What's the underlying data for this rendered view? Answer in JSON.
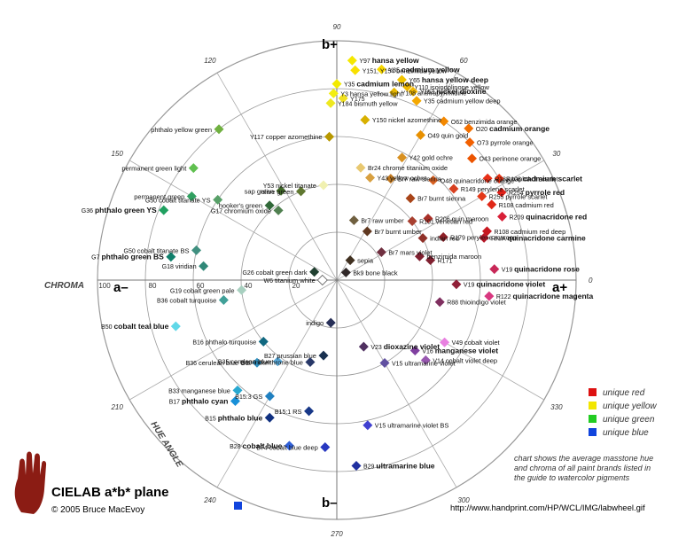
{
  "axis_labels": {
    "b_plus": "b+",
    "b_minus": "b–",
    "a_plus": "a+",
    "a_minus": "a–",
    "chroma": "CHROMA",
    "hue_angle": "HUE ANGLE"
  },
  "hue_ticks": [
    "60",
    "30",
    "0",
    "330",
    "300",
    "270",
    "240",
    "210",
    "150",
    "120",
    "90"
  ],
  "chroma_ticks": [
    "100",
    "80",
    "60",
    "40",
    "20"
  ],
  "legend": [
    {
      "label": "unique red",
      "color": "#dd1111"
    },
    {
      "label": "unique yellow",
      "color": "#f2e600"
    },
    {
      "label": "unique green",
      "color": "#22cc22"
    },
    {
      "label": "unique blue",
      "color": "#1144dd"
    }
  ],
  "note": [
    "chart shows the average masstone hue",
    "and chroma of all paint brands listed in",
    "the guide to watercolor pigments"
  ],
  "title": "CIELAB a*b* plane",
  "copyright": "© 2005 Bruce MacEvoy",
  "url": "http://www.handprint.com/HP/WCL/IMG/labwheel.gif",
  "paints": [
    {
      "code": "Y97",
      "name": "hansa yellow",
      "bold": true,
      "color": "#f5e800",
      "hue": 86,
      "chroma": 92
    },
    {
      "code": "Y151, Y154",
      "name": "benzimida yellow",
      "bold": false,
      "color": "#f8e000",
      "hue": 85,
      "chroma": 88
    },
    {
      "code": "Y35",
      "name": "cadmium lemon",
      "bold": true,
      "color": "#f2ea00",
      "hue": 90,
      "chroma": 82
    },
    {
      "code": "Y3",
      "name": "hansa yellow light",
      "bold": false,
      "color": "#f3ee10",
      "hue": 91,
      "chroma": 78
    },
    {
      "code": "Y184",
      "name": "bismuth yellow",
      "bold": false,
      "color": "#eee820",
      "hue": 92,
      "chroma": 74
    },
    {
      "code": "Y175",
      "name": "",
      "bold": false,
      "color": "#f0e020",
      "hue": 88,
      "chroma": 76
    },
    {
      "code": "Y35",
      "name": "cadmium yellow",
      "bold": true,
      "color": "#f8d800",
      "hue": 78,
      "chroma": 90
    },
    {
      "code": "Y108",
      "name": "anthrapyrimidine",
      "bold": false,
      "color": "#e8b800",
      "hue": 73,
      "chroma": 82
    },
    {
      "code": "Y65",
      "name": "hansa yellow deep",
      "bold": true,
      "color": "#f2c400",
      "hue": 72,
      "chroma": 88
    },
    {
      "code": "Y110",
      "name": "isoindolinone yellow",
      "bold": false,
      "color": "#f0b800",
      "hue": 70,
      "chroma": 86
    },
    {
      "code": "Y153",
      "name": "nickel dioxine",
      "bold": true,
      "color": "#f3b800",
      "hue": 68,
      "chroma": 85
    },
    {
      "code": "Y35",
      "name": "cadmium yellow deep",
      "bold": false,
      "color": "#f4a800",
      "hue": 66,
      "chroma": 82
    },
    {
      "code": "Y150",
      "name": "nickel azomethine",
      "bold": false,
      "color": "#d8b000",
      "hue": 80,
      "chroma": 68
    },
    {
      "code": "Y117",
      "name": "copper azomethine",
      "bold": false,
      "color": "#b89800",
      "hue": 93,
      "chroma": 60
    },
    {
      "code": "O62",
      "name": "benzimida orange",
      "bold": false,
      "color": "#f38800",
      "hue": 56,
      "chroma": 80
    },
    {
      "code": "O20",
      "name": "cadmium orange",
      "bold": true,
      "color": "#f27000",
      "hue": 49,
      "chroma": 84
    },
    {
      "code": "O73",
      "name": "pyrrole orange",
      "bold": false,
      "color": "#f26000",
      "hue": 46,
      "chroma": 80
    },
    {
      "code": "O43",
      "name": "perinone orange",
      "bold": false,
      "color": "#ec5400",
      "hue": 42,
      "chroma": 76
    },
    {
      "code": "Br24",
      "name": "chrome titanium oxide",
      "bold": false,
      "color": "#e8c870",
      "hue": 78,
      "chroma": 48
    },
    {
      "code": "Y43",
      "name": "yellow ochre",
      "bold": false,
      "color": "#d8a040",
      "hue": 72,
      "chroma": 45
    },
    {
      "code": "O49",
      "name": "quin gold",
      "bold": false,
      "color": "#e89000",
      "hue": 60,
      "chroma": 70
    },
    {
      "code": "Y42",
      "name": "gold ochre",
      "bold": false,
      "color": "#d89020",
      "hue": 62,
      "chroma": 58
    },
    {
      "code": "Y53",
      "name": "nickel titanate",
      "bold": false,
      "color": "#f0f0b0",
      "hue": 98,
      "chroma": 40
    },
    {
      "code": "Br7",
      "name": "raw sienna",
      "bold": false,
      "color": "#c07820",
      "hue": 62,
      "chroma": 48
    },
    {
      "code": "R188",
      "name": "naphthol scarlet",
      "bold": false,
      "color": "#e83018",
      "hue": 34,
      "chroma": 76
    },
    {
      "code": "R108",
      "name": "cadmium scarlet",
      "bold": true,
      "color": "#ea3010",
      "hue": 32,
      "chroma": 80
    },
    {
      "code": "R254",
      "name": "pyrrole red",
      "bold": true,
      "color": "#e02018",
      "hue": 28,
      "chroma": 78
    },
    {
      "code": "R255",
      "name": "pyrrole scarlet",
      "bold": false,
      "color": "#e43818",
      "hue": 30,
      "chroma": 70
    },
    {
      "code": "R108",
      "name": "cadmium red",
      "bold": false,
      "color": "#e02818",
      "hue": 26,
      "chroma": 72
    },
    {
      "code": "R209",
      "name": "quinacridone red",
      "bold": true,
      "color": "#d82038",
      "hue": 21,
      "chroma": 74
    },
    {
      "code": "R108",
      "name": "cadmium red deep",
      "bold": false,
      "color": "#c81820",
      "hue": 18,
      "chroma": 66
    },
    {
      "code": "RN/A",
      "name": "quinacridone carmine",
      "bold": true,
      "color": "#b81828",
      "hue": 16,
      "chroma": 64
    },
    {
      "code": "O48",
      "name": "quinacridone orange",
      "bold": false,
      "color": "#d86020",
      "hue": 46,
      "chroma": 58
    },
    {
      "code": "R149",
      "name": "perylene scarlet",
      "bold": false,
      "color": "#d84020",
      "hue": 38,
      "chroma": 62
    },
    {
      "code": "Br7",
      "name": "burnt sienna",
      "bold": false,
      "color": "#a84418",
      "hue": 48,
      "chroma": 46
    },
    {
      "code": "R206",
      "name": "quin maroon",
      "bold": false,
      "color": "#a83028",
      "hue": 34,
      "chroma": 46
    },
    {
      "code": "R101",
      "name": "venetian red",
      "bold": false,
      "color": "#a84030",
      "hue": 38,
      "chroma": 40
    },
    {
      "code": "R179",
      "name": "perylene maroon",
      "bold": false,
      "color": "#902028",
      "hue": 22,
      "chroma": 48
    },
    {
      "code": "",
      "name": "indian red",
      "bold": false,
      "color": "#903028",
      "hue": 26,
      "chroma": 40
    },
    {
      "code": "",
      "name": "benzimida maroon",
      "bold": false,
      "color": "#802030",
      "hue": 16,
      "chroma": 36
    },
    {
      "code": "R171",
      "name": "",
      "bold": false,
      "color": "#802030",
      "hue": 12,
      "chroma": 40
    },
    {
      "code": "V19",
      "name": "quinacridone rose",
      "bold": true,
      "color": "#c82858",
      "hue": 4,
      "chroma": 66
    },
    {
      "code": "V19",
      "name": "quinacridone violet",
      "bold": true,
      "color": "#902038",
      "hue": 358,
      "chroma": 50
    },
    {
      "code": "R122",
      "name": "quinacridone magenta",
      "bold": true,
      "color": "#d83880",
      "hue": 354,
      "chroma": 64
    },
    {
      "code": "R88",
      "name": "thioindigo violet",
      "bold": false,
      "color": "#803060",
      "hue": 348,
      "chroma": 44
    },
    {
      "code": "Br7",
      "name": "raw umber",
      "bold": false,
      "color": "#706040",
      "hue": 74,
      "chroma": 26
    },
    {
      "code": "Br7",
      "name": "burnt umber",
      "bold": false,
      "color": "#603820",
      "hue": 58,
      "chroma": 24
    },
    {
      "code": "Br7",
      "name": "mars violet",
      "bold": false,
      "color": "#703040",
      "hue": 32,
      "chroma": 22
    },
    {
      "code": "",
      "name": "sepia",
      "bold": false,
      "color": "#403020",
      "hue": 56,
      "chroma": 10
    },
    {
      "code": "Bk9",
      "name": "bone black",
      "bold": false,
      "color": "#302828",
      "hue": 40,
      "chroma": 5
    },
    {
      "code": "W6",
      "name": "titanium white",
      "bold": false,
      "color": "#ffffff",
      "hue": 180,
      "chroma": 6
    },
    {
      "code": "G26",
      "name": "cobalt green dark",
      "bold": false,
      "color": "#204030",
      "hue": 160,
      "chroma": 10
    },
    {
      "code": "",
      "name": "olive green",
      "bold": false,
      "color": "#607830",
      "hue": 112,
      "chroma": 40
    },
    {
      "code": "",
      "name": "sap green",
      "bold": false,
      "color": "#406828",
      "hue": 122,
      "chroma": 44
    },
    {
      "code": "",
      "name": "hooker's green",
      "bold": false,
      "color": "#306838",
      "hue": 132,
      "chroma": 42
    },
    {
      "code": "G17",
      "name": "chromium oxide",
      "bold": false,
      "color": "#508050",
      "hue": 130,
      "chroma": 38
    },
    {
      "code": "",
      "name": "phthalo yellow green",
      "bold": false,
      "color": "#70b040",
      "hue": 128,
      "chroma": 80
    },
    {
      "code": "",
      "name": "permanent green light",
      "bold": false,
      "color": "#60c050",
      "hue": 142,
      "chroma": 76
    },
    {
      "code": "G50",
      "name": "cobalt titanate YS",
      "bold": false,
      "color": "#58a068",
      "hue": 146,
      "chroma": 60
    },
    {
      "code": "",
      "name": "permanent green",
      "bold": false,
      "color": "#30a060",
      "hue": 150,
      "chroma": 70
    },
    {
      "code": "G36",
      "name": "phthalo green YS",
      "bold": true,
      "color": "#20a060",
      "hue": 158,
      "chroma": 78
    },
    {
      "code": "G50",
      "name": "cobalt titanate BS",
      "bold": false,
      "color": "#409080",
      "hue": 168,
      "chroma": 60
    },
    {
      "code": "G7",
      "name": "phthalo green BS",
      "bold": true,
      "color": "#10806c",
      "hue": 172,
      "chroma": 70
    },
    {
      "code": "G18",
      "name": "viridian",
      "bold": false,
      "color": "#308878",
      "hue": 174,
      "chroma": 56
    },
    {
      "code": "G19",
      "name": "cobalt green pale",
      "bold": false,
      "color": "#a8d0c0",
      "hue": 186,
      "chroma": 40
    },
    {
      "code": "B36",
      "name": "cobalt turquoise",
      "bold": false,
      "color": "#40a098",
      "hue": 190,
      "chroma": 48
    },
    {
      "code": "B50",
      "name": "cobalt teal blue",
      "bold": true,
      "color": "#60d8e8",
      "hue": 196,
      "chroma": 70
    },
    {
      "code": "",
      "name": "indigo",
      "bold": false,
      "color": "#283058",
      "hue": 262,
      "chroma": 18
    },
    {
      "code": "B16",
      "name": "phthalo turquoise",
      "bold": false,
      "color": "#106880",
      "hue": 220,
      "chroma": 40
    },
    {
      "code": "B36",
      "name": "cerulean blue GS",
      "bold": false,
      "color": "#3090c0",
      "hue": 226,
      "chroma": 48
    },
    {
      "code": "B60",
      "name": "indanthrone blue",
      "bold": false,
      "color": "#283868",
      "hue": 252,
      "chroma": 36
    },
    {
      "code": "B35",
      "name": "cerulean blue",
      "bold": false,
      "color": "#58a8d8",
      "hue": 234,
      "chroma": 42
    },
    {
      "code": "B27",
      "name": "prussian blue",
      "bold": false,
      "color": "#183050",
      "hue": 260,
      "chroma": 32
    },
    {
      "code": "V23",
      "name": "dioxazine violet",
      "bold": true,
      "color": "#503060",
      "hue": 292,
      "chroma": 30
    },
    {
      "code": "V16",
      "name": "manganese violet",
      "bold": true,
      "color": "#8040a0",
      "hue": 318,
      "chroma": 44
    },
    {
      "code": "V49",
      "name": "cobalt violet",
      "bold": false,
      "color": "#e880e0",
      "hue": 330,
      "chroma": 52
    },
    {
      "code": "V14",
      "name": "cobalt violet deep",
      "bold": false,
      "color": "#9858b0",
      "hue": 318,
      "chroma": 50
    },
    {
      "code": "V15",
      "name": "ultramarine violet",
      "bold": false,
      "color": "#6050a0",
      "hue": 300,
      "chroma": 40
    },
    {
      "code": "B17",
      "name": "phthalo cyan",
      "bold": true,
      "color": "#1890d8",
      "hue": 230,
      "chroma": 66
    },
    {
      "code": "B33",
      "name": "manganese blue",
      "bold": false,
      "color": "#28a8d0",
      "hue": 228,
      "chroma": 62
    },
    {
      "code": "B15:3",
      "name": "GS",
      "bold": false,
      "color": "#2080c0",
      "hue": 240,
      "chroma": 56
    },
    {
      "code": "B15",
      "name": "phthalo blue",
      "bold": true,
      "color": "#103080",
      "hue": 244,
      "chroma": 64
    },
    {
      "code": "B15:1",
      "name": "RS",
      "bold": false,
      "color": "#183888",
      "hue": 258,
      "chroma": 56
    },
    {
      "code": "B28",
      "name": "cobalt blue",
      "bold": true,
      "color": "#3060d8",
      "hue": 254,
      "chroma": 72
    },
    {
      "code": "B74",
      "name": "cobalt blue deep",
      "bold": false,
      "color": "#2838c0",
      "hue": 266,
      "chroma": 70
    },
    {
      "code": "V15",
      "name": "ultramarine violet BS",
      "bold": false,
      "color": "#4040d0",
      "hue": 282,
      "chroma": 62
    },
    {
      "code": "B29",
      "name": "ultramarine blue",
      "bold": true,
      "color": "#2030a0",
      "hue": 276,
      "chroma": 78
    }
  ]
}
